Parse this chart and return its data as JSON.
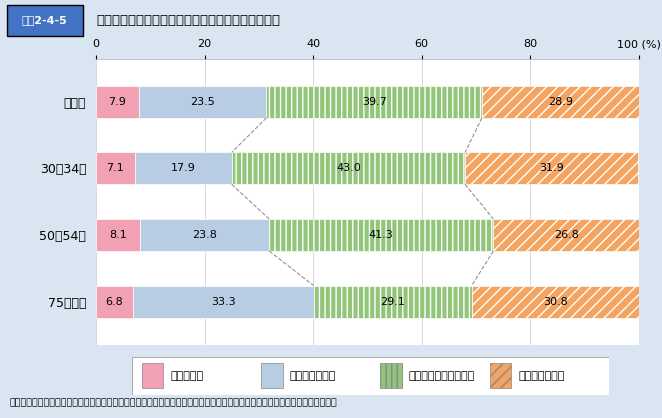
{
  "title_box": "図表2-4-5",
  "title_main": "「死についてほとんど考えたことはない」人の割合",
  "categories": [
    "全年齢",
    "30～34歳",
    "50～54歳",
    "75歳以上"
  ],
  "segments": [
    {
      "label": "あてはまる",
      "values": [
        7.9,
        7.1,
        8.1,
        6.8
      ],
      "color": "#f2a0b4",
      "hatch": ""
    },
    {
      "label": "ややあてはまる",
      "values": [
        23.5,
        17.9,
        23.8,
        33.3
      ],
      "color": "#b8cce4",
      "hatch": ""
    },
    {
      "label": "あまりあてはまらない",
      "values": [
        39.7,
        43.0,
        41.3,
        29.1
      ],
      "color": "#92c47a",
      "hatch": "|||"
    },
    {
      "label": "あてはまらない",
      "values": [
        28.9,
        31.9,
        26.8,
        30.8
      ],
      "color": "#f4a460",
      "hatch": "///"
    }
  ],
  "xlim": [
    0,
    100
  ],
  "xticks": [
    0,
    20,
    40,
    60,
    80,
    100
  ],
  "background_color": "#d9e5f0",
  "plot_bg_color": "#ffffff",
  "title_box_color": "#4472c4",
  "source_text": "資料：安心と信頼のある「ライフエンディング・ステージ」の創出に向けた普及備叁に関する研究会（経済産業省）報告書より"
}
